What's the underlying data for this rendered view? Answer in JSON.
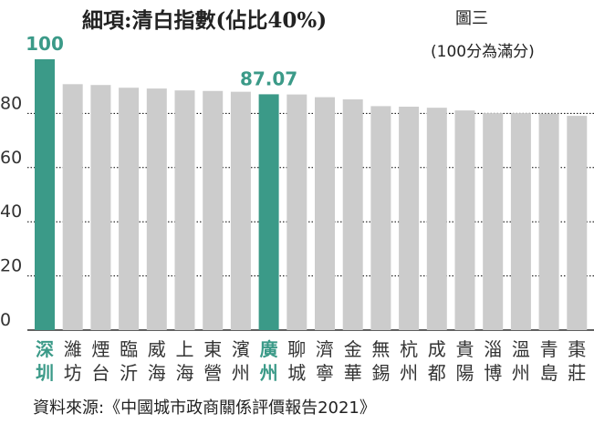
{
  "title": "細項:清白指數(佔比40%)",
  "figure_label": "圖三",
  "note": "(100分為滿分)",
  "source": "資料來源:《中國城市政商關係評價報告2021》",
  "colors": {
    "bar": "#cccccc",
    "highlight": "#3b9a88"
  },
  "chart_data": {
    "type": "bar",
    "categories": [
      "深圳",
      "濰坊",
      "煙台",
      "臨沂",
      "威海",
      "上海",
      "東營",
      "濱州",
      "廣州",
      "聊城",
      "濟寧",
      "金華",
      "無錫",
      "杭州",
      "成都",
      "貴陽",
      "淄博",
      "溫州",
      "青島",
      "棗莊"
    ],
    "values": [
      100,
      90.8,
      90.5,
      89.5,
      89.2,
      88.5,
      88.3,
      88.0,
      87.07,
      87.0,
      86.0,
      85.2,
      82.7,
      82.5,
      82.1,
      81.1,
      80.1,
      80.1,
      79.9,
      79.1
    ],
    "highlight": [
      "深圳",
      "廣州"
    ],
    "data_labels": [
      {
        "category": "深圳",
        "text": "100"
      },
      {
        "category": "廣州",
        "text": "87.07"
      }
    ],
    "yticks": [
      0,
      20,
      40,
      60,
      80
    ],
    "ylim": [
      0,
      100
    ],
    "xlabel": "",
    "ylabel": ""
  }
}
